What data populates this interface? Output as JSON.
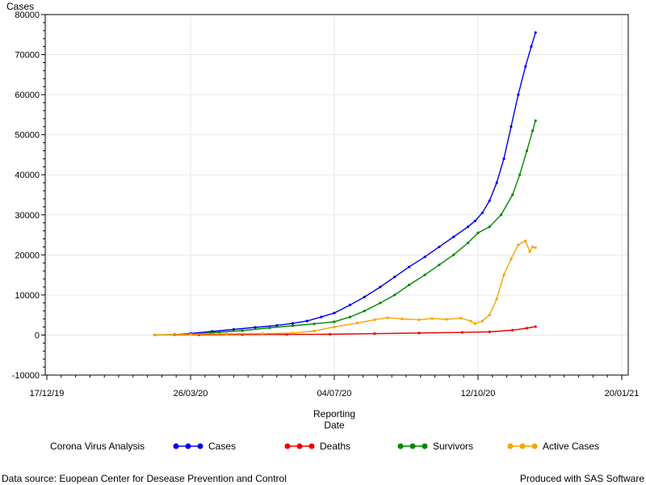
{
  "chart_data": {
    "type": "line",
    "ylabel": "Cases",
    "xlabel_lines": [
      "Reporting",
      "Date"
    ],
    "ylim": [
      -10000,
      80000
    ],
    "yticks": [
      -10000,
      0,
      10000,
      20000,
      30000,
      40000,
      50000,
      60000,
      70000,
      80000
    ],
    "x_axis": {
      "min": "2019-12-17",
      "max": "2021-01-20",
      "major_ticks": [
        {
          "date": "2019-12-17",
          "label": "17/12/19"
        },
        {
          "date": "2020-03-26",
          "label": "26/03/20"
        },
        {
          "date": "2020-07-04",
          "label": "04/07/20"
        },
        {
          "date": "2020-10-12",
          "label": "12/10/20"
        },
        {
          "date": "2021-01-20",
          "label": "20/01/21"
        }
      ]
    },
    "grid": true,
    "legend": {
      "title": "Corona Virus Analysis",
      "placement": "bottom"
    },
    "series": [
      {
        "name": "Cases",
        "color": "#0000ee",
        "points": [
          [
            "2020-03-01",
            0
          ],
          [
            "2020-03-15",
            100
          ],
          [
            "2020-03-26",
            400
          ],
          [
            "2020-04-10",
            900
          ],
          [
            "2020-04-25",
            1400
          ],
          [
            "2020-05-10",
            1900
          ],
          [
            "2020-05-25",
            2400
          ],
          [
            "2020-06-05",
            2900
          ],
          [
            "2020-06-15",
            3500
          ],
          [
            "2020-06-25",
            4500
          ],
          [
            "2020-07-04",
            5500
          ],
          [
            "2020-07-15",
            7500
          ],
          [
            "2020-07-25",
            9500
          ],
          [
            "2020-08-05",
            12000
          ],
          [
            "2020-08-15",
            14500
          ],
          [
            "2020-08-25",
            17000
          ],
          [
            "2020-09-05",
            19500
          ],
          [
            "2020-09-15",
            22000
          ],
          [
            "2020-09-25",
            24500
          ],
          [
            "2020-10-05",
            27000
          ],
          [
            "2020-10-10",
            28500
          ],
          [
            "2020-10-15",
            30500
          ],
          [
            "2020-10-20",
            33500
          ],
          [
            "2020-10-25",
            38000
          ],
          [
            "2020-10-30",
            44000
          ],
          [
            "2020-11-04",
            52000
          ],
          [
            "2020-11-09",
            60000
          ],
          [
            "2020-11-14",
            67000
          ],
          [
            "2020-11-18",
            72000
          ],
          [
            "2020-11-21",
            75500
          ]
        ]
      },
      {
        "name": "Deaths",
        "color": "#ee0000",
        "points": [
          [
            "2020-03-01",
            0
          ],
          [
            "2020-04-01",
            50
          ],
          [
            "2020-05-01",
            100
          ],
          [
            "2020-06-01",
            150
          ],
          [
            "2020-07-01",
            200
          ],
          [
            "2020-08-01",
            350
          ],
          [
            "2020-09-01",
            500
          ],
          [
            "2020-10-01",
            650
          ],
          [
            "2020-10-20",
            800
          ],
          [
            "2020-11-05",
            1200
          ],
          [
            "2020-11-15",
            1700
          ],
          [
            "2020-11-21",
            2100
          ]
        ]
      },
      {
        "name": "Survivors",
        "color": "#008800",
        "points": [
          [
            "2020-03-01",
            0
          ],
          [
            "2020-03-26",
            200
          ],
          [
            "2020-04-15",
            700
          ],
          [
            "2020-05-01",
            1100
          ],
          [
            "2020-05-20",
            1800
          ],
          [
            "2020-06-05",
            2300
          ],
          [
            "2020-06-20",
            2800
          ],
          [
            "2020-07-04",
            3300
          ],
          [
            "2020-07-15",
            4500
          ],
          [
            "2020-07-25",
            6000
          ],
          [
            "2020-08-05",
            8000
          ],
          [
            "2020-08-15",
            10000
          ],
          [
            "2020-08-25",
            12500
          ],
          [
            "2020-09-05",
            15000
          ],
          [
            "2020-09-15",
            17500
          ],
          [
            "2020-09-25",
            20000
          ],
          [
            "2020-10-05",
            23000
          ],
          [
            "2020-10-12",
            25500
          ],
          [
            "2020-10-20",
            27000
          ],
          [
            "2020-10-28",
            30000
          ],
          [
            "2020-11-05",
            35000
          ],
          [
            "2020-11-10",
            40000
          ],
          [
            "2020-11-15",
            46000
          ],
          [
            "2020-11-19",
            51000
          ],
          [
            "2020-11-21",
            53500
          ]
        ]
      },
      {
        "name": "Active Cases",
        "color": "#f5a500",
        "points": [
          [
            "2020-03-01",
            0
          ],
          [
            "2020-03-26",
            200
          ],
          [
            "2020-04-20",
            300
          ],
          [
            "2020-05-15",
            350
          ],
          [
            "2020-06-05",
            500
          ],
          [
            "2020-06-20",
            1000
          ],
          [
            "2020-07-04",
            2000
          ],
          [
            "2020-07-20",
            3000
          ],
          [
            "2020-08-01",
            3800
          ],
          [
            "2020-08-10",
            4300
          ],
          [
            "2020-08-20",
            4000
          ],
          [
            "2020-09-01",
            3800
          ],
          [
            "2020-09-10",
            4100
          ],
          [
            "2020-09-20",
            3900
          ],
          [
            "2020-09-30",
            4200
          ],
          [
            "2020-10-07",
            3500
          ],
          [
            "2020-10-10",
            2800
          ],
          [
            "2020-10-15",
            3500
          ],
          [
            "2020-10-20",
            5000
          ],
          [
            "2020-10-25",
            9000
          ],
          [
            "2020-10-30",
            15000
          ],
          [
            "2020-11-04",
            19000
          ],
          [
            "2020-11-09",
            22500
          ],
          [
            "2020-11-14",
            23500
          ],
          [
            "2020-11-17",
            20800
          ],
          [
            "2020-11-19",
            22000
          ],
          [
            "2020-11-21",
            21800
          ]
        ]
      }
    ]
  },
  "footer": {
    "source": "Data source: Euopean Center for Desease Prevention and Control",
    "produced_by": "Produced with SAS Software"
  }
}
